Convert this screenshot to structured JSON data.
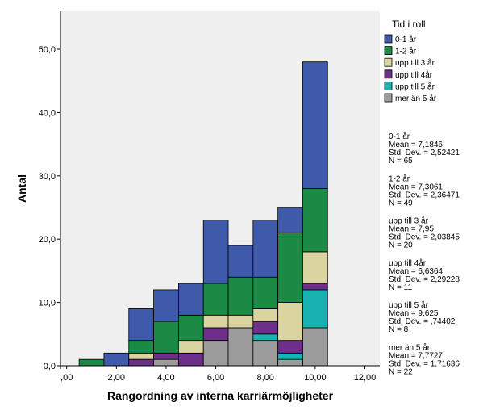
{
  "chart_data": {
    "type": "bar",
    "stacked": true,
    "xlabel": "Rangordning av interna karriärmöjligheter",
    "ylabel": "Antal",
    "xlim": [
      -0.25,
      12.6
    ],
    "ylim": [
      0,
      50
    ],
    "x_ticks": [
      0,
      2,
      4,
      6,
      8,
      10,
      12
    ],
    "x_tick_labels": [
      ",00",
      "2,00",
      "4,00",
      "6,00",
      "8,00",
      "10,00",
      "12,00"
    ],
    "y_ticks": [
      0,
      10,
      20,
      30,
      40,
      50
    ],
    "y_tick_labels": [
      "0,0",
      "10,0",
      "20,0",
      "30,0",
      "40,0",
      "50,0"
    ],
    "bin_width": 1,
    "bins": [
      1,
      2,
      3,
      4,
      5,
      6,
      7,
      8,
      9,
      10
    ],
    "plot_background": "#efefef",
    "legend": {
      "title": "Tid i roll",
      "placement": "right"
    },
    "series": [
      {
        "name": "mer än 5 år",
        "color": "#9c9c9c",
        "values": [
          0,
          0,
          0,
          1,
          0,
          4,
          6,
          4,
          1,
          6
        ]
      },
      {
        "name": "upp till 5 år",
        "color": "#18b3b0",
        "values": [
          0,
          0,
          0,
          0,
          0,
          0,
          0,
          1,
          1,
          6
        ]
      },
      {
        "name": "upp till 4år",
        "color": "#6e2f8a",
        "values": [
          0,
          0,
          1,
          1,
          2,
          2,
          0,
          2,
          2,
          1
        ]
      },
      {
        "name": "upp till 3 år",
        "color": "#d9d4a0",
        "values": [
          0,
          0,
          1,
          0,
          2,
          2,
          2,
          2,
          6,
          5
        ]
      },
      {
        "name": "1-2 år",
        "color": "#1a8a45",
        "values": [
          1,
          0,
          2,
          5,
          4,
          5,
          6,
          5,
          11,
          10
        ]
      },
      {
        "name": "0-1 år",
        "color": "#3f5aaa",
        "values": [
          0,
          2,
          5,
          5,
          5,
          10,
          5,
          9,
          4,
          20
        ]
      }
    ],
    "stats": [
      {
        "lines": [
          "0-1 år",
          "Mean = 7,1846",
          "Std. Dev. = 2,52421",
          "N = 65"
        ]
      },
      {
        "lines": [
          "1-2 år",
          "Mean = 7,3061",
          "Std. Dev. = 2,36471",
          "N = 49"
        ]
      },
      {
        "lines": [
          "upp till 3 år",
          "Mean = 7,95",
          "Std. Dev. = 2,03845",
          "N = 20"
        ]
      },
      {
        "lines": [
          "upp till 4år",
          "Mean = 6,6364",
          "Std. Dev. = 2,29228",
          "N = 11"
        ]
      },
      {
        "lines": [
          "upp till 5 år",
          "Mean = 9,625",
          "Std. Dev. = ,74402",
          "N = 8"
        ]
      },
      {
        "lines": [
          "mer än 5 år",
          "Mean = 7,7727",
          "Std. Dev. = 1,71636",
          "N = 22"
        ]
      }
    ]
  }
}
